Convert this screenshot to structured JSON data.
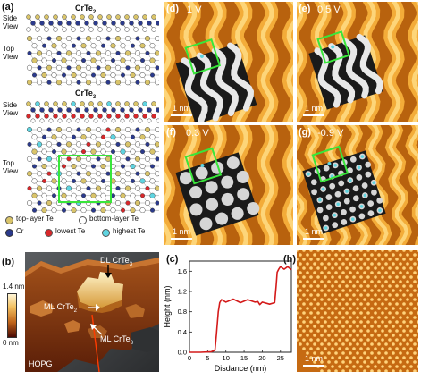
{
  "panel_a": {
    "letter": "(a)",
    "structures": [
      {
        "title": "CrTe",
        "title_sub": "2",
        "side_label_1": "Side",
        "side_label_2": "View",
        "top_label_1": "Top",
        "top_label_2": "View"
      },
      {
        "title": "CrTe",
        "title_sub": "3",
        "side_label_1": "Side",
        "side_label_2": "View",
        "top_label_1": "Top",
        "top_label_2": "View"
      }
    ],
    "legend": [
      {
        "label": "top-layer  Te",
        "color": "#d9c46a"
      },
      {
        "label": "bottom-layer Te",
        "color": "#ffffff"
      },
      {
        "label": "Cr",
        "color": "#2b3a8c"
      },
      {
        "label": "lowest Te",
        "color": "#d8272a"
      },
      {
        "label": "highest Te",
        "color": "#5fd4e0"
      }
    ]
  },
  "panel_b": {
    "letter": "(b)",
    "colorbar_max": "1.4 nm",
    "colorbar_min": "0 nm",
    "label_dl": "DL CrTe",
    "label_dl_sub": "3",
    "label_ml_te2": "ML CrTe",
    "label_ml_te2_sub": "2",
    "label_ml_te3": "ML CrTe",
    "label_ml_te3_sub": "3",
    "label_hopg": "HOPG"
  },
  "panels_stm": [
    {
      "letter": "(d)",
      "bias": "1 V",
      "scale": "1 nm"
    },
    {
      "letter": "(e)",
      "bias": "0.5 V",
      "scale": "1 nm"
    },
    {
      "letter": "(f)",
      "bias": "0.3 V",
      "scale": "1 nm"
    },
    {
      "letter": "(g)",
      "bias": "-0.9 V",
      "scale": "1 nm"
    },
    {
      "letter": "(h)",
      "bias": "",
      "scale": "1 nm"
    }
  ],
  "panel_c": {
    "letter": "(c)",
    "chart_data": {
      "type": "line",
      "xlabel": "Disdance (nm)",
      "ylabel": "Height (nm)",
      "xlim": [
        0,
        28
      ],
      "ylim": [
        0,
        1.8
      ],
      "x_ticks": [
        "0",
        "5",
        "10",
        "15",
        "20",
        "25"
      ],
      "y_ticks": [
        "0.0",
        "0.4",
        "0.8",
        "1.2",
        "1.6"
      ],
      "series": [
        {
          "color": "#d41a1a",
          "x": [
            0,
            3,
            6,
            7,
            7.4,
            7.9,
            8.3,
            8.8,
            10,
            12,
            14,
            16,
            18,
            18.8,
            19.3,
            20,
            22,
            23.4,
            23.8,
            24.1,
            24.5,
            25,
            26,
            27,
            28
          ],
          "y": [
            0.0,
            0.0,
            0.01,
            0.04,
            0.35,
            0.8,
            0.98,
            1.02,
            1.01,
            1.03,
            1.0,
            1.02,
            1.01,
            0.98,
            0.96,
            0.97,
            0.97,
            0.98,
            1.3,
            1.58,
            1.66,
            1.67,
            1.66,
            1.67,
            1.65
          ]
        }
      ]
    }
  }
}
